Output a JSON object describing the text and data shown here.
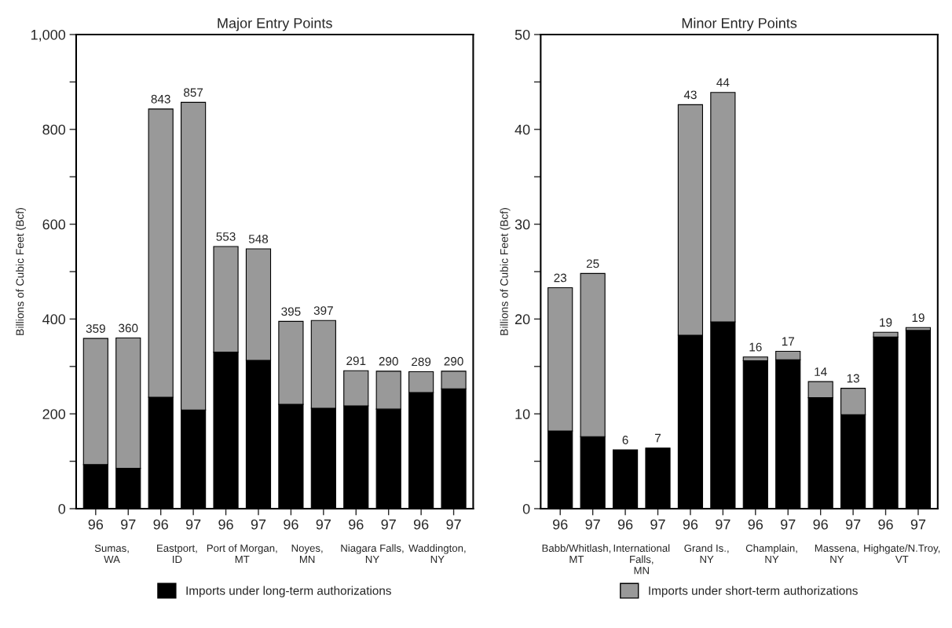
{
  "chart_data": [
    {
      "type": "bar",
      "title": "Major Entry Points",
      "ylabel": "Billions of Cubic Feet (Bcf)",
      "stacked": true,
      "categories": [
        "96",
        "97",
        "96",
        "97",
        "96",
        "97",
        "96",
        "97",
        "96",
        "97",
        "96",
        "97"
      ],
      "series": [
        {
          "name": "Imports under long-term authorizations",
          "color": "#000000",
          "values": [
            93,
            85,
            235,
            208,
            330,
            313,
            220,
            212,
            217,
            210,
            245,
            253
          ]
        },
        {
          "color": "#999999",
          "values": [
            266,
            275,
            608,
            649,
            223,
            235,
            175,
            185,
            74,
            80,
            44,
            37
          ]
        }
      ],
      "totals": [
        "359",
        "360",
        "843",
        "857",
        "553",
        "548",
        "395",
        "397",
        "291",
        "290",
        "289",
        "290"
      ],
      "ylim": [
        0,
        1000
      ],
      "yticks": [
        0,
        {
          "value": 100,
          "label": null
        },
        200,
        {
          "value": 300,
          "label": null
        },
        400,
        {
          "value": 500,
          "label": null
        },
        600,
        {
          "value": 700,
          "label": null
        },
        800,
        {
          "value": 900,
          "label": null
        },
        {
          "value": 1000,
          "label": "1,000"
        }
      ],
      "annotations": [
        "Sumas,\nWA",
        "Eastport,\nID",
        "Port of Morgan,\nMT",
        "Noyes,\nMN",
        "Niagara Falls,\nNY",
        "Waddington,\nNY"
      ],
      "legend": "bottom",
      "grid": false
    },
    {
      "type": "bar",
      "title": "Minor Entry Points",
      "ylabel": "Billions of Cubic Feet (Bcf)",
      "stacked": true,
      "categories": [
        "96",
        "97",
        "96",
        "97",
        "96",
        "97",
        "96",
        "97",
        "96",
        "97",
        "96",
        "97"
      ],
      "series": [
        {
          "color": "#000000",
          "values": [
            8.2,
            7.6,
            6.2,
            6.4,
            18.3,
            19.7,
            15.6,
            15.7,
            11.7,
            9.9,
            18.1,
            18.8
          ]
        },
        {
          "name": "Imports under short-term authorizations",
          "color": "#999999",
          "values": [
            15.1,
            17.2,
            null,
            null,
            24.3,
            24.2,
            0.4,
            0.9,
            1.7,
            2.8,
            0.5,
            0.3
          ]
        }
      ],
      "totals": [
        "23",
        "25",
        "6",
        "7",
        "43",
        "44",
        "16",
        "17",
        "14",
        "13",
        "19",
        "19"
      ],
      "ylim": [
        0,
        50
      ],
      "yticks": [
        0,
        {
          "value": 5,
          "label": null
        },
        10,
        {
          "value": 15,
          "label": null
        },
        20,
        {
          "value": 25,
          "label": null
        },
        30,
        {
          "value": 35,
          "label": null
        },
        40,
        {
          "value": 45,
          "label": null
        },
        50
      ],
      "annotations": [
        "Babb/Whitlash,\nMT",
        "International\nFalls,\nMN",
        "Grand Is.,\nNY",
        "Champlain,\nNY",
        "Massena,\nNY",
        "Highgate/N.Troy,\nVT"
      ],
      "legend": "bottom",
      "grid": false
    }
  ]
}
